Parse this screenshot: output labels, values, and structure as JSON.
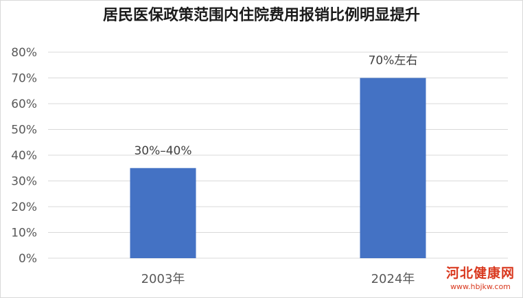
{
  "chart_data": {
    "type": "bar",
    "title": "居民医保政策范围内住院费用报销比例明显提升",
    "categories": [
      "2003年",
      "2024年"
    ],
    "values": [
      35,
      70
    ],
    "data_labels": [
      "30%–40%",
      "70%左右"
    ],
    "yticks": [
      "0%",
      "10%",
      "20%",
      "30%",
      "40%",
      "50%",
      "60%",
      "70%",
      "80%"
    ],
    "ylim": [
      0,
      80
    ],
    "grid": true,
    "bar_color": "#4472c4",
    "grid_color": "#d9d9d9"
  },
  "watermark": {
    "title": "河北健康网",
    "url": "www.hbjkw.com"
  }
}
